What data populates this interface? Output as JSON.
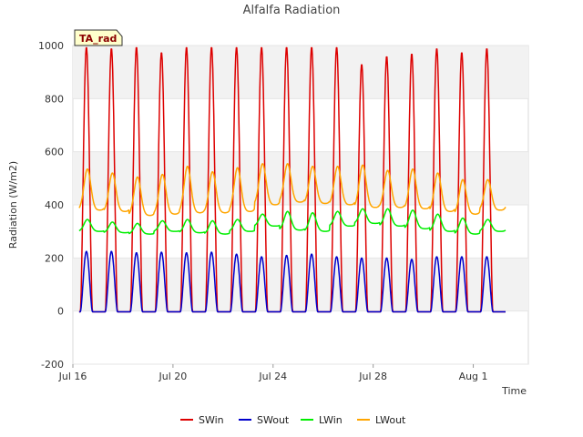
{
  "chart_data": {
    "type": "line",
    "title": "Alfalfa Radiation",
    "xlabel": "Time",
    "ylabel": "Radiation (W/m2)",
    "badge": "TA_rad",
    "ylim": [
      -200,
      1000
    ],
    "yticks": [
      -200,
      0,
      200,
      400,
      600,
      800,
      1000
    ],
    "xlim": [
      0,
      18.2
    ],
    "xticks": [
      {
        "x": 0,
        "label": "Jul 16"
      },
      {
        "x": 4,
        "label": "Jul 20"
      },
      {
        "x": 8,
        "label": "Jul 24"
      },
      {
        "x": 12,
        "label": "Jul 28"
      },
      {
        "x": 16,
        "label": "Aug 1"
      }
    ],
    "grid": "horizontal shaded bands",
    "legend_position": "bottom-center",
    "series": [
      {
        "name": "SWin",
        "color": "#dd0000",
        "night_value": -3,
        "daily_peaks": [
          995,
          990,
          995,
          975,
          995,
          995,
          995,
          995,
          995,
          995,
          995,
          930,
          960,
          970,
          990,
          975,
          990
        ]
      },
      {
        "name": "SWout",
        "color": "#0000cc",
        "night_value": -3,
        "daily_peaks": [
          225,
          225,
          220,
          222,
          220,
          222,
          215,
          205,
          210,
          215,
          205,
          200,
          200,
          195,
          205,
          205,
          205
        ]
      },
      {
        "name": "LWin",
        "color": "#00ee00",
        "daily_base": [
          300,
          295,
          290,
          300,
          295,
          290,
          300,
          320,
          305,
          300,
          320,
          330,
          320,
          310,
          300,
          290,
          300
        ],
        "daily_peaks": [
          345,
          335,
          330,
          340,
          345,
          340,
          345,
          365,
          375,
          370,
          375,
          385,
          385,
          380,
          365,
          350,
          345
        ]
      },
      {
        "name": "LWout",
        "color": "#ffa500",
        "daily_base": [
          380,
          375,
          360,
          365,
          370,
          370,
          375,
          400,
          410,
          405,
          400,
          390,
          390,
          385,
          375,
          365,
          380
        ],
        "daily_peaks": [
          535,
          520,
          505,
          515,
          545,
          525,
          540,
          555,
          555,
          545,
          545,
          550,
          530,
          535,
          520,
          495,
          495
        ]
      }
    ]
  }
}
